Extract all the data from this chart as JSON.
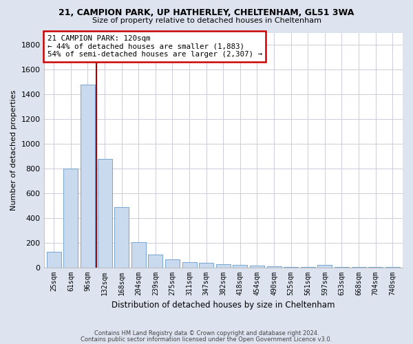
{
  "title1": "21, CAMPION PARK, UP HATHERLEY, CHELTENHAM, GL51 3WA",
  "title2": "Size of property relative to detached houses in Cheltenham",
  "xlabel": "Distribution of detached houses by size in Cheltenham",
  "ylabel": "Number of detached properties",
  "categories": [
    "25sqm",
    "61sqm",
    "96sqm",
    "132sqm",
    "168sqm",
    "204sqm",
    "239sqm",
    "275sqm",
    "311sqm",
    "347sqm",
    "382sqm",
    "418sqm",
    "454sqm",
    "490sqm",
    "525sqm",
    "561sqm",
    "597sqm",
    "633sqm",
    "668sqm",
    "704sqm",
    "740sqm"
  ],
  "values": [
    125,
    800,
    1480,
    880,
    490,
    205,
    105,
    65,
    42,
    35,
    28,
    22,
    15,
    8,
    5,
    4,
    18,
    3,
    2,
    2,
    2
  ],
  "bar_color": "#c9d9ee",
  "bar_edge_color": "#6699cc",
  "vline_color": "#aa0000",
  "annotation_line1": "21 CAMPION PARK: 120sqm",
  "annotation_line2": "← 44% of detached houses are smaller (1,883)",
  "annotation_line3": "54% of semi-detached houses are larger (2,307) →",
  "annotation_box_color": "#cc0000",
  "ylim": [
    0,
    1900
  ],
  "yticks": [
    0,
    200,
    400,
    600,
    800,
    1000,
    1200,
    1400,
    1600,
    1800
  ],
  "footer1": "Contains HM Land Registry data © Crown copyright and database right 2024.",
  "footer2": "Contains public sector information licensed under the Open Government Licence v3.0.",
  "bg_color": "#dde4f0",
  "plot_bg_color": "#ffffff",
  "grid_color": "#ccccdd"
}
